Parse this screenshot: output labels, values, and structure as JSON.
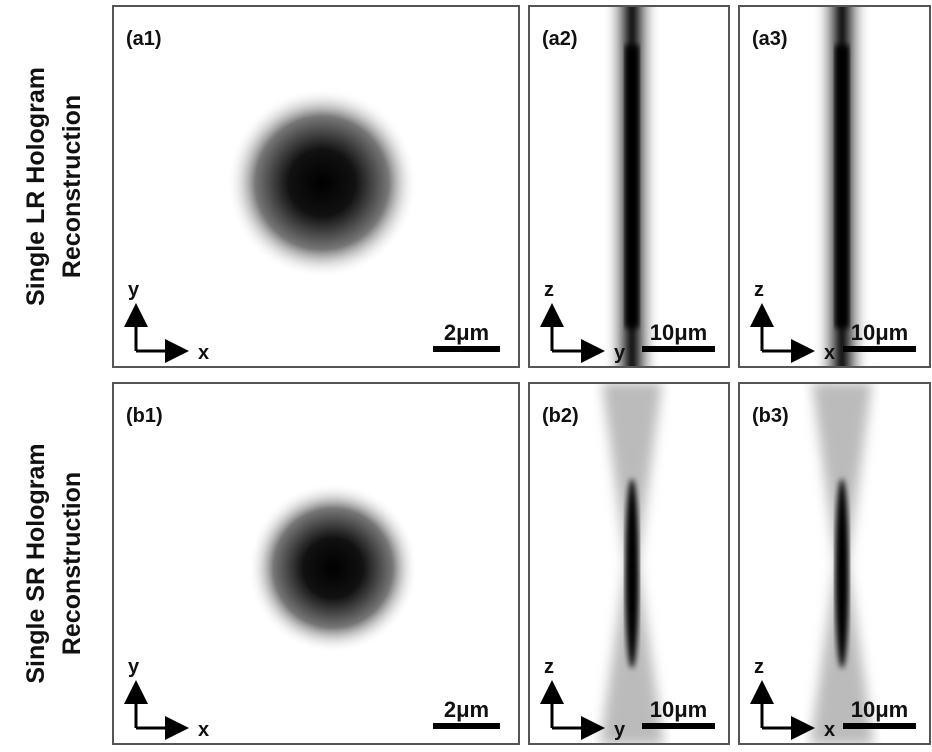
{
  "rows": [
    {
      "label_lines": [
        "Single LR Hologram",
        "Reconstruction"
      ],
      "panels": [
        {
          "label": "(a1)",
          "axis_vertical": "y",
          "axis_horizontal": "x",
          "scale_bar": "2μm"
        },
        {
          "label": "(a2)",
          "axis_vertical": "z",
          "axis_horizontal": "y",
          "scale_bar": "10μm"
        },
        {
          "label": "(a3)",
          "axis_vertical": "z",
          "axis_horizontal": "x",
          "scale_bar": "10μm"
        }
      ]
    },
    {
      "label_lines": [
        "Single SR Hologram",
        "Reconstruction"
      ],
      "panels": [
        {
          "label": "(b1)",
          "axis_vertical": "y",
          "axis_horizontal": "x",
          "scale_bar": "2μm"
        },
        {
          "label": "(b2)",
          "axis_vertical": "z",
          "axis_horizontal": "y",
          "scale_bar": "10μm"
        },
        {
          "label": "(b3)",
          "axis_vertical": "z",
          "axis_horizontal": "x",
          "scale_bar": "10μm"
        }
      ]
    }
  ]
}
